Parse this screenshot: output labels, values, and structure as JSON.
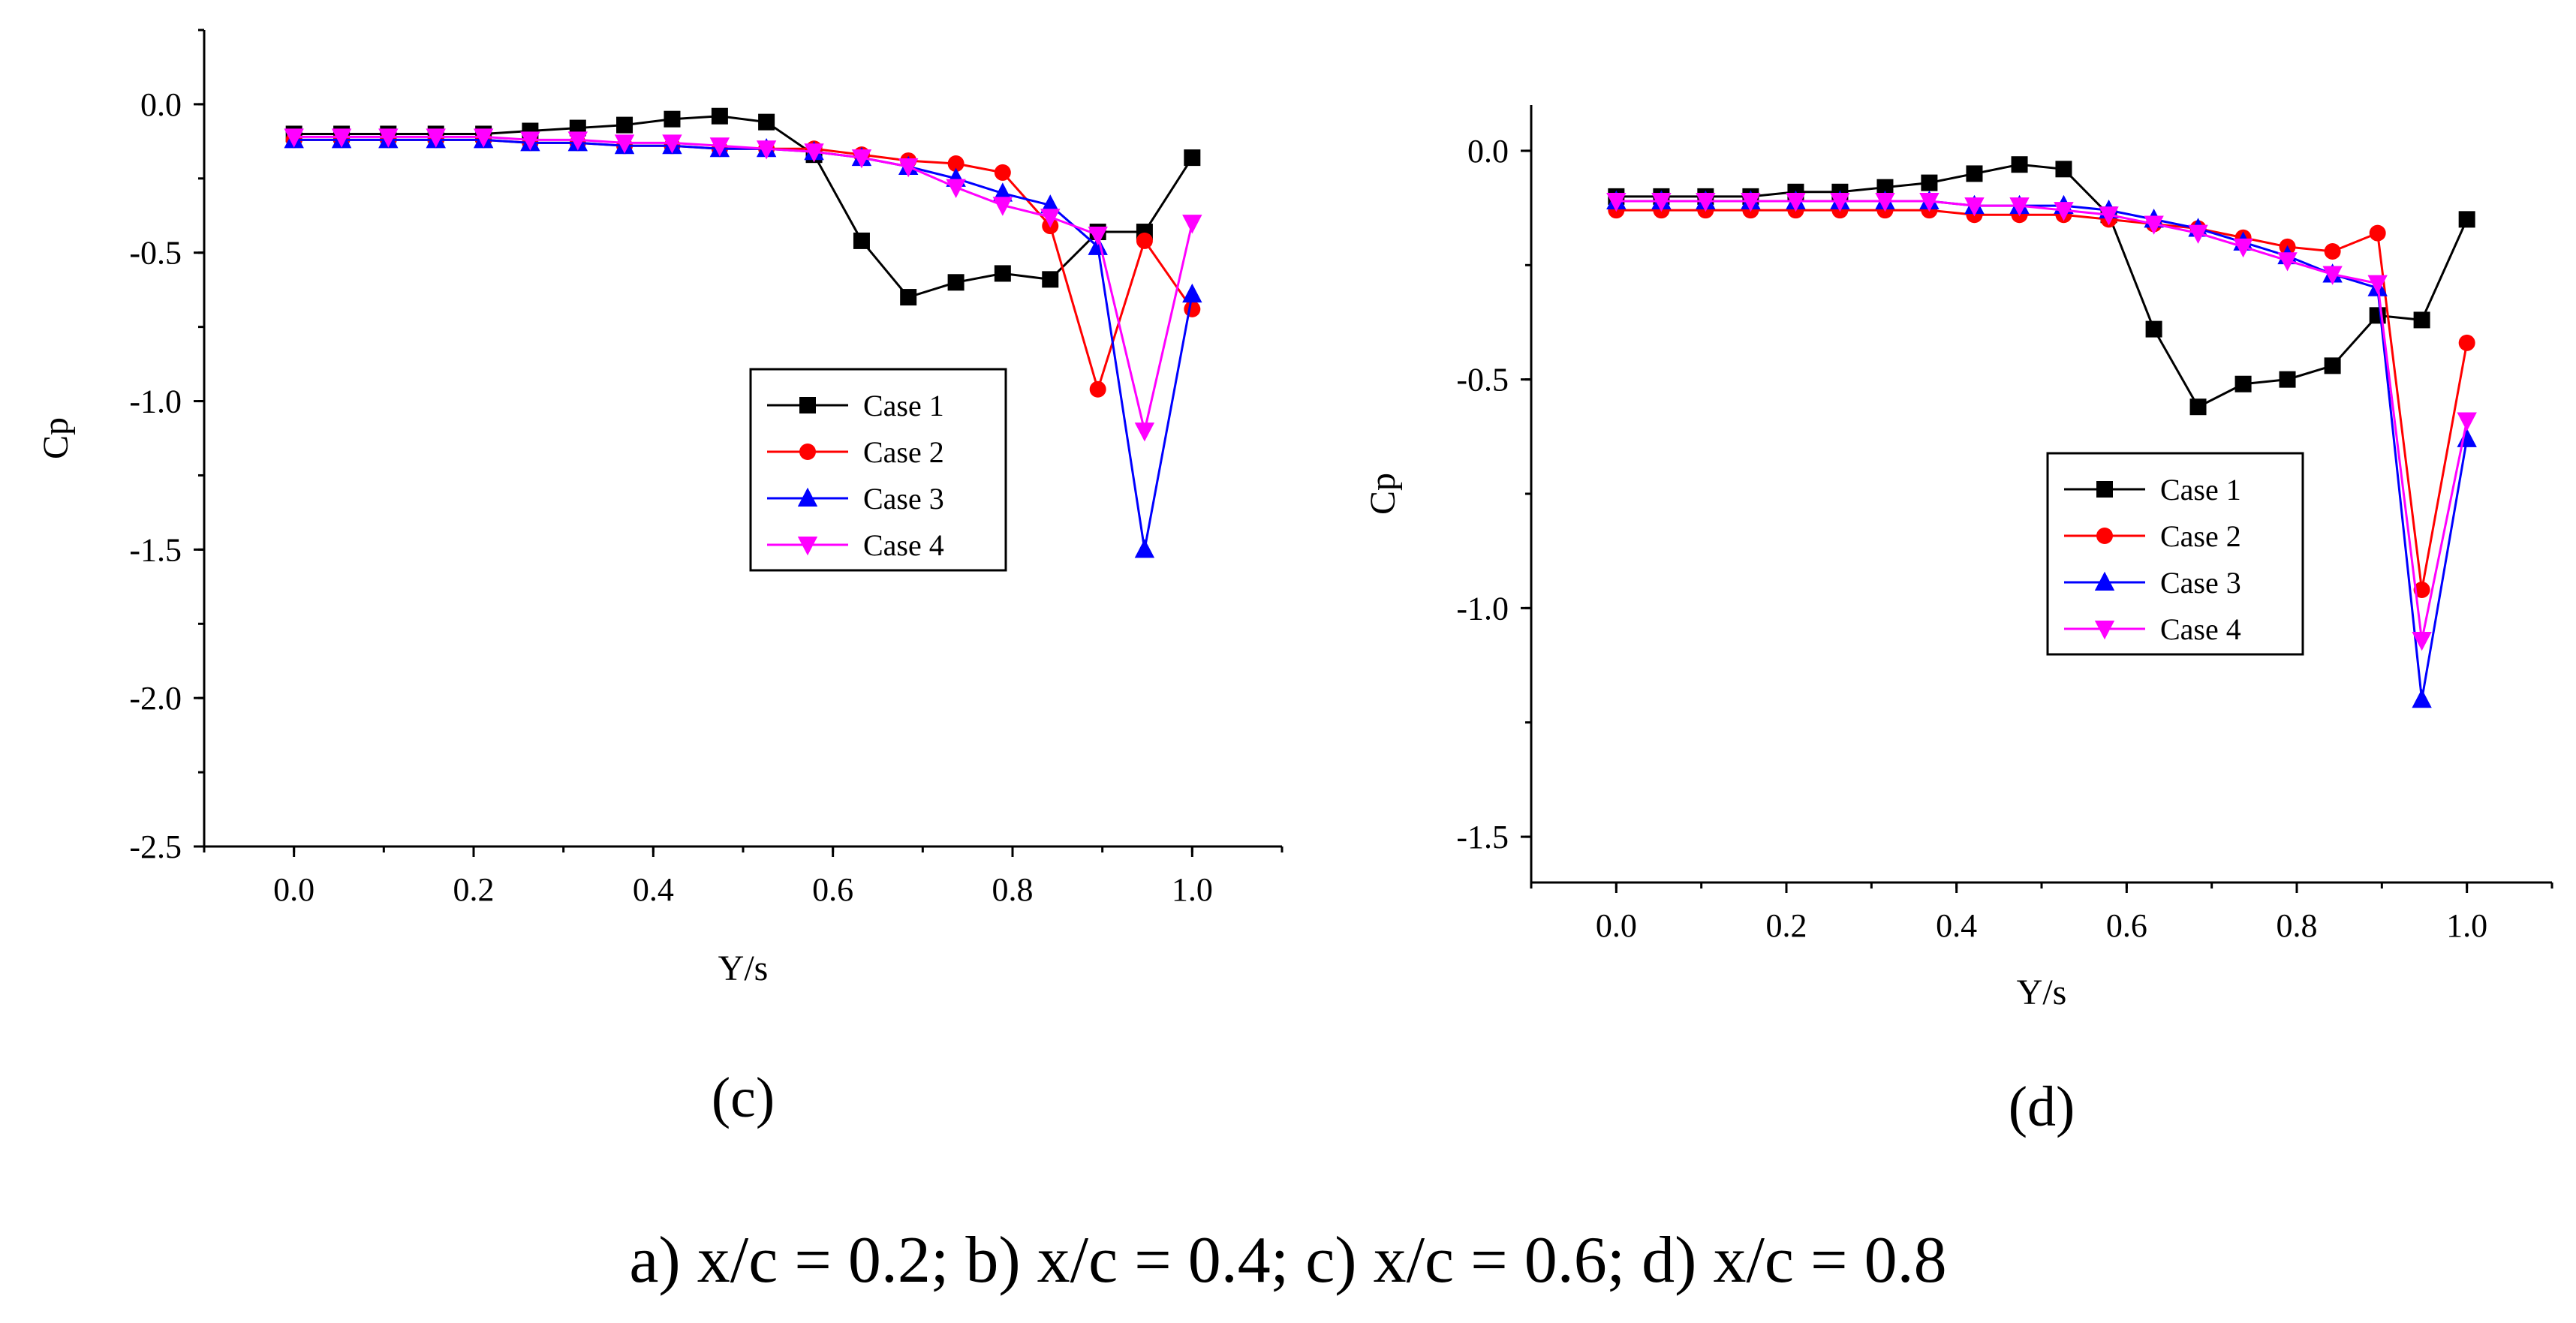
{
  "caption": "a) x/c = 0.2; b) x/c = 0.4; c) x/c = 0.6; d) x/c = 0.8",
  "colors": {
    "Case 1": "#000000",
    "Case 2": "#ff0000",
    "Case 3": "#0000ff",
    "Case 4": "#ff00ff"
  },
  "chart_data": [
    {
      "type": "line",
      "panel_label": "(c)",
      "xlabel": "Y/s",
      "ylabel": "Cp",
      "xlim": [
        -0.1,
        1.1
      ],
      "ylim": [
        -2.5,
        0.25
      ],
      "xticks": [
        "0.0",
        "0.2",
        "0.4",
        "0.6",
        "0.8",
        "1.0"
      ],
      "yticks": [
        "0.0",
        "-0.5",
        "-1.0",
        "-1.5",
        "-2.0",
        "-2.5"
      ],
      "legend_position": "center-right",
      "x": [
        0.0,
        0.053,
        0.105,
        0.158,
        0.211,
        0.263,
        0.316,
        0.368,
        0.421,
        0.474,
        0.526,
        0.579,
        0.632,
        0.684,
        0.737,
        0.789,
        0.842,
        0.895,
        0.947,
        1.0
      ],
      "series": [
        {
          "name": "Case 1",
          "marker": "square",
          "values": [
            -0.1,
            -0.1,
            -0.1,
            -0.1,
            -0.1,
            -0.09,
            -0.08,
            -0.07,
            -0.05,
            -0.04,
            -0.06,
            -0.17,
            -0.46,
            -0.65,
            -0.6,
            -0.57,
            -0.59,
            -0.43,
            -0.43,
            -0.18
          ]
        },
        {
          "name": "Case 2",
          "marker": "circle",
          "values": [
            -0.12,
            -0.12,
            -0.12,
            -0.12,
            -0.12,
            -0.13,
            -0.13,
            -0.14,
            -0.14,
            -0.15,
            -0.15,
            -0.15,
            -0.17,
            -0.19,
            -0.2,
            -0.23,
            -0.41,
            -0.96,
            -0.46,
            -0.69
          ]
        },
        {
          "name": "Case 3",
          "marker": "triangle-up",
          "values": [
            -0.12,
            -0.12,
            -0.12,
            -0.12,
            -0.12,
            -0.13,
            -0.13,
            -0.14,
            -0.14,
            -0.15,
            -0.15,
            -0.16,
            -0.18,
            -0.21,
            -0.25,
            -0.3,
            -0.34,
            -0.48,
            -1.5,
            -0.64
          ]
        },
        {
          "name": "Case 4",
          "marker": "triangle-down",
          "values": [
            -0.11,
            -0.11,
            -0.11,
            -0.11,
            -0.11,
            -0.12,
            -0.12,
            -0.13,
            -0.13,
            -0.14,
            -0.15,
            -0.16,
            -0.18,
            -0.21,
            -0.28,
            -0.34,
            -0.38,
            -0.44,
            -1.1,
            -0.4
          ]
        }
      ]
    },
    {
      "type": "line",
      "panel_label": "(d)",
      "xlabel": "Y/s",
      "ylabel": "Cp",
      "xlim": [
        -0.1,
        1.1
      ],
      "ylim": [
        -1.6,
        0.1
      ],
      "xticks": [
        "0.0",
        "0.2",
        "0.4",
        "0.6",
        "0.8",
        "1.0"
      ],
      "yticks": [
        "0.0",
        "-0.5",
        "-1.0",
        "-1.5"
      ],
      "legend_position": "center-right",
      "x": [
        0.0,
        0.053,
        0.105,
        0.158,
        0.211,
        0.263,
        0.316,
        0.368,
        0.421,
        0.474,
        0.526,
        0.579,
        0.632,
        0.684,
        0.737,
        0.789,
        0.842,
        0.895,
        0.947,
        1.0
      ],
      "series": [
        {
          "name": "Case 1",
          "marker": "square",
          "values": [
            -0.1,
            -0.1,
            -0.1,
            -0.1,
            -0.09,
            -0.09,
            -0.08,
            -0.07,
            -0.05,
            -0.03,
            -0.04,
            -0.14,
            -0.39,
            -0.56,
            -0.51,
            -0.5,
            -0.47,
            -0.36,
            -0.37,
            -0.15
          ]
        },
        {
          "name": "Case 2",
          "marker": "circle",
          "values": [
            -0.13,
            -0.13,
            -0.13,
            -0.13,
            -0.13,
            -0.13,
            -0.13,
            -0.13,
            -0.14,
            -0.14,
            -0.14,
            -0.15,
            -0.16,
            -0.17,
            -0.19,
            -0.21,
            -0.22,
            -0.18,
            -0.96,
            -0.42
          ]
        },
        {
          "name": "Case 3",
          "marker": "triangle-up",
          "values": [
            -0.11,
            -0.11,
            -0.11,
            -0.11,
            -0.11,
            -0.11,
            -0.11,
            -0.11,
            -0.12,
            -0.12,
            -0.12,
            -0.13,
            -0.15,
            -0.17,
            -0.2,
            -0.23,
            -0.27,
            -0.3,
            -1.2,
            -0.63
          ]
        },
        {
          "name": "Case 4",
          "marker": "triangle-down",
          "values": [
            -0.11,
            -0.11,
            -0.11,
            -0.11,
            -0.11,
            -0.11,
            -0.11,
            -0.11,
            -0.12,
            -0.12,
            -0.13,
            -0.14,
            -0.16,
            -0.18,
            -0.21,
            -0.24,
            -0.27,
            -0.29,
            -1.07,
            -0.59
          ]
        }
      ]
    }
  ]
}
